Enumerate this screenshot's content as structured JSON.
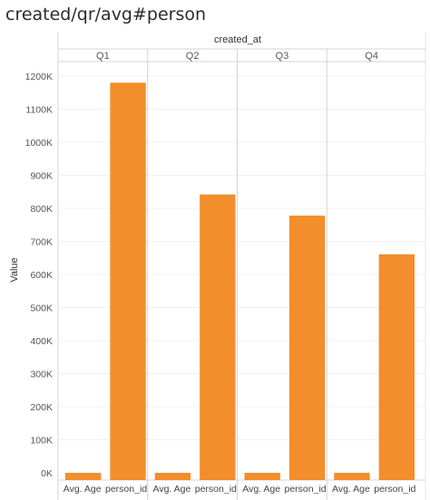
{
  "header": {
    "title": "created/qr/avg#person",
    "column_header": "created_at",
    "y_axis_label": "Value"
  },
  "chart_data": {
    "type": "bar",
    "title": "created/qr/avg#person",
    "xlabel": "created_at",
    "ylabel": "Value",
    "ylim": [
      0,
      1250000
    ],
    "y_ticks": [
      "0K",
      "100K",
      "200K",
      "300K",
      "400K",
      "500K",
      "600K",
      "700K",
      "800K",
      "900K",
      "1000K",
      "1100K",
      "1200K"
    ],
    "y_tick_values": [
      0,
      100000,
      200000,
      300000,
      400000,
      500000,
      600000,
      700000,
      800000,
      900000,
      1000000,
      1100000,
      1200000
    ],
    "groups": [
      "Q1",
      "Q2",
      "Q3",
      "Q4"
    ],
    "measures": [
      "Avg. Age",
      "person_id"
    ],
    "series": [
      {
        "name": "Avg. Age",
        "values": [
          35,
          35,
          35,
          35
        ]
      },
      {
        "name": "person_id",
        "values": [
          1180000,
          842000,
          778000,
          661000
        ]
      }
    ],
    "bar_color": "#f28e2b",
    "grid": true
  }
}
